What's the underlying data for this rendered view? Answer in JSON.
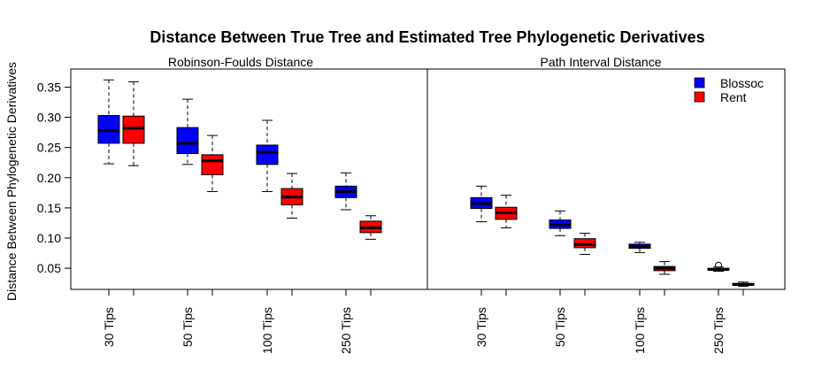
{
  "chart_data": {
    "type": "boxplot",
    "title": "Distance Between True Tree and Estimated Tree Phylogenetic Derivatives",
    "ylabel": "Distance Between Phylogenetic Derivatives",
    "xlabel": "",
    "ylim": [
      0.015,
      0.38
    ],
    "yticks": [
      "0.05",
      "0.10",
      "0.15",
      "0.20",
      "0.25",
      "0.30",
      "0.35"
    ],
    "ytick_values": [
      0.05,
      0.1,
      0.15,
      0.2,
      0.25,
      0.3,
      0.35
    ],
    "categories": [
      "30 Tips",
      "50 Tips",
      "100 Tips",
      "250 Tips"
    ],
    "legend": {
      "position": "top-right",
      "entries": [
        {
          "name": "Blossoc",
          "color": "#0000ff"
        },
        {
          "name": "Rent",
          "color": "#ff0000"
        }
      ]
    },
    "panels": [
      {
        "title": "Robinson-Foulds Distance",
        "series": [
          {
            "name": "Blossoc",
            "color": "#0000ff",
            "boxes": [
              {
                "category": "30 Tips",
                "min": 0.223,
                "q1": 0.257,
                "median": 0.278,
                "q3": 0.303,
                "max": 0.362
              },
              {
                "category": "50 Tips",
                "min": 0.222,
                "q1": 0.24,
                "median": 0.257,
                "q3": 0.283,
                "max": 0.33
              },
              {
                "category": "100 Tips",
                "min": 0.177,
                "q1": 0.222,
                "median": 0.242,
                "q3": 0.254,
                "max": 0.295
              },
              {
                "category": "250 Tips",
                "min": 0.147,
                "q1": 0.167,
                "median": 0.177,
                "q3": 0.186,
                "max": 0.208
              }
            ]
          },
          {
            "name": "Rent",
            "color": "#ff0000",
            "boxes": [
              {
                "category": "30 Tips",
                "min": 0.22,
                "q1": 0.257,
                "median": 0.282,
                "q3": 0.302,
                "max": 0.359
              },
              {
                "category": "50 Tips",
                "min": 0.177,
                "q1": 0.205,
                "median": 0.228,
                "q3": 0.238,
                "max": 0.27
              },
              {
                "category": "100 Tips",
                "min": 0.133,
                "q1": 0.155,
                "median": 0.168,
                "q3": 0.182,
                "max": 0.207
              },
              {
                "category": "250 Tips",
                "min": 0.098,
                "q1": 0.109,
                "median": 0.117,
                "q3": 0.128,
                "max": 0.137
              }
            ]
          }
        ]
      },
      {
        "title": "Path Interval Distance",
        "series": [
          {
            "name": "Blossoc",
            "color": "#0000ff",
            "boxes": [
              {
                "category": "30 Tips",
                "min": 0.127,
                "q1": 0.149,
                "median": 0.157,
                "q3": 0.167,
                "max": 0.186
              },
              {
                "category": "50 Tips",
                "min": 0.104,
                "q1": 0.116,
                "median": 0.122,
                "q3": 0.13,
                "max": 0.145
              },
              {
                "category": "100 Tips",
                "min": 0.076,
                "q1": 0.083,
                "median": 0.086,
                "q3": 0.09,
                "max": 0.093
              },
              {
                "category": "250 Tips",
                "min": 0.045,
                "q1": 0.047,
                "median": 0.048,
                "q3": 0.05,
                "max": 0.052,
                "outliers": [
                  0.055
                ]
              }
            ]
          },
          {
            "name": "Rent",
            "color": "#ff0000",
            "boxes": [
              {
                "category": "30 Tips",
                "min": 0.117,
                "q1": 0.131,
                "median": 0.142,
                "q3": 0.151,
                "max": 0.171
              },
              {
                "category": "50 Tips",
                "min": 0.073,
                "q1": 0.084,
                "median": 0.089,
                "q3": 0.099,
                "max": 0.108
              },
              {
                "category": "100 Tips",
                "min": 0.04,
                "q1": 0.046,
                "median": 0.05,
                "q3": 0.053,
                "max": 0.061
              },
              {
                "category": "250 Tips",
                "min": 0.02,
                "q1": 0.022,
                "median": 0.023,
                "q3": 0.025,
                "max": 0.027
              }
            ]
          }
        ]
      }
    ]
  }
}
